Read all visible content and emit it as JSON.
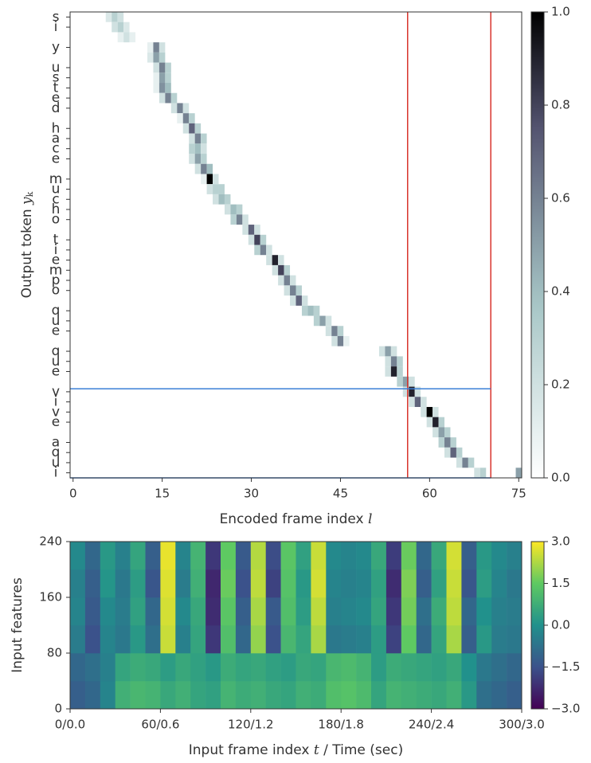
{
  "chart_data": [
    {
      "type": "heatmap",
      "ylabel": [
        "Output token ",
        "y",
        "k"
      ],
      "xlabel": [
        "Encoded frame index ",
        "l"
      ],
      "categories": [
        "s",
        "i",
        null,
        "y",
        null,
        "u",
        "s",
        "t",
        "e",
        "d",
        null,
        "h",
        "a",
        "c",
        "e",
        null,
        "m",
        "u",
        "c",
        "h",
        "o",
        null,
        "t",
        "i",
        "e",
        "m",
        "p",
        "o",
        null,
        "q",
        "u",
        "e",
        null,
        "q",
        "u",
        "e",
        null,
        "v",
        "i",
        "v",
        "e",
        null,
        "a",
        "q",
        "u",
        "i"
      ],
      "xlim": [
        -0.5,
        75.5
      ],
      "xticks": [
        0,
        15,
        30,
        45,
        60,
        75
      ],
      "colormap": "bone_r",
      "clim": [
        0,
        1
      ],
      "cticks": [
        {
          "value": 0,
          "label": "0.0"
        },
        0.2,
        0.4,
        0.6,
        0.8,
        {
          "value": 1,
          "label": "1.0"
        }
      ],
      "vlines": [
        56.3,
        70.3
      ],
      "vline_color": "#d8342c",
      "hlines": [
        37.2,
        46
      ],
      "hline_color": "#3b7fd6",
      "series": [
        {
          "x": [
            6,
            7,
            8
          ],
          "values": [
            0.15,
            0.3,
            0.2
          ]
        },
        {
          "x": [
            7,
            8,
            9
          ],
          "values": [
            0.2,
            0.3,
            0.15
          ]
        },
        {
          "x": [
            8,
            9,
            10
          ],
          "values": [
            0.1,
            0.2,
            0.1
          ]
        },
        {
          "x": [
            13,
            14,
            15
          ],
          "values": [
            0.1,
            0.6,
            0.2
          ]
        },
        {
          "x": [
            13,
            14,
            15
          ],
          "values": [
            0.15,
            0.5,
            0.3
          ]
        },
        {
          "x": [
            14,
            15,
            16
          ],
          "values": [
            0.2,
            0.6,
            0.3
          ]
        },
        {
          "x": [
            14,
            15,
            16
          ],
          "values": [
            0.1,
            0.5,
            0.3
          ]
        },
        {
          "x": [
            14,
            15,
            16
          ],
          "values": [
            0.1,
            0.55,
            0.4
          ]
        },
        {
          "x": [
            15,
            16,
            17
          ],
          "values": [
            0.2,
            0.6,
            0.3
          ]
        },
        {
          "x": [
            17,
            18,
            19
          ],
          "values": [
            0.2,
            0.6,
            0.2
          ]
        },
        {
          "x": [
            18,
            19,
            20
          ],
          "values": [
            0.1,
            0.6,
            0.3
          ]
        },
        {
          "x": [
            19,
            20,
            21
          ],
          "values": [
            0.2,
            0.7,
            0.3
          ]
        },
        {
          "x": [
            20,
            21,
            22
          ],
          "values": [
            0.2,
            0.6,
            0.3
          ]
        },
        {
          "x": [
            20,
            21,
            22
          ],
          "values": [
            0.3,
            0.4,
            0.2
          ]
        },
        {
          "x": [
            20,
            21,
            22
          ],
          "values": [
            0.2,
            0.5,
            0.3
          ]
        },
        {
          "x": [
            21,
            22,
            23
          ],
          "values": [
            0.2,
            0.6,
            0.4
          ]
        },
        {
          "x": [
            22,
            23,
            24
          ],
          "values": [
            0.1,
            1.0,
            0.2
          ]
        },
        {
          "x": [
            23,
            24,
            25
          ],
          "values": [
            0.2,
            0.3,
            0.3
          ]
        },
        {
          "x": [
            24,
            25,
            26
          ],
          "values": [
            0.2,
            0.4,
            0.3
          ]
        },
        {
          "x": [
            26,
            27,
            28
          ],
          "values": [
            0.2,
            0.4,
            0.3
          ]
        },
        {
          "x": [
            27,
            28,
            29
          ],
          "values": [
            0.3,
            0.6,
            0.2
          ]
        },
        {
          "x": [
            29,
            30,
            31
          ],
          "values": [
            0.2,
            0.7,
            0.2
          ]
        },
        {
          "x": [
            30,
            31,
            32
          ],
          "values": [
            0.2,
            0.8,
            0.3
          ]
        },
        {
          "x": [
            31,
            32,
            33
          ],
          "values": [
            0.3,
            0.6,
            0.2
          ]
        },
        {
          "x": [
            33,
            34,
            35
          ],
          "values": [
            0.2,
            0.9,
            0.2
          ]
        },
        {
          "x": [
            34,
            35,
            36
          ],
          "values": [
            0.2,
            0.8,
            0.3
          ]
        },
        {
          "x": [
            35,
            36,
            37
          ],
          "values": [
            0.2,
            0.6,
            0.2
          ]
        },
        {
          "x": [
            36,
            37,
            38
          ],
          "values": [
            0.2,
            0.6,
            0.3
          ]
        },
        {
          "x": [
            37,
            38,
            39
          ],
          "values": [
            0.2,
            0.7,
            0.2
          ]
        },
        {
          "x": [
            39,
            40,
            41
          ],
          "values": [
            0.3,
            0.4,
            0.3
          ]
        },
        {
          "x": [
            41,
            42,
            43
          ],
          "values": [
            0.3,
            0.5,
            0.2
          ]
        },
        {
          "x": [
            43,
            44,
            45
          ],
          "values": [
            0.2,
            0.6,
            0.3
          ]
        },
        {
          "x": [
            44,
            45,
            46
          ],
          "values": [
            0.2,
            0.6,
            0.1
          ]
        },
        {
          "x": [
            52,
            53,
            54
          ],
          "values": [
            0.2,
            0.5,
            0.2
          ]
        },
        {
          "x": [
            53,
            54,
            55
          ],
          "values": [
            0.2,
            0.6,
            0.3
          ]
        },
        {
          "x": [
            53,
            54,
            55
          ],
          "values": [
            0.2,
            0.9,
            0.3
          ]
        },
        {
          "x": [
            55,
            56,
            57
          ],
          "values": [
            0.3,
            0.5,
            0.2
          ]
        },
        {
          "x": [
            56,
            57,
            58
          ],
          "values": [
            0.2,
            0.9,
            0.2
          ]
        },
        {
          "x": [
            57,
            58,
            59
          ],
          "values": [
            0.2,
            0.7,
            0.2
          ]
        },
        {
          "x": [
            59,
            60,
            61
          ],
          "values": [
            0.2,
            1.0,
            0.2
          ]
        },
        {
          "x": [
            60,
            61,
            62
          ],
          "values": [
            0.2,
            0.9,
            0.3
          ]
        },
        {
          "x": [
            61,
            62,
            63
          ],
          "values": [
            0.2,
            0.5,
            0.3
          ]
        },
        {
          "x": [
            62,
            63,
            64
          ],
          "values": [
            0.3,
            0.6,
            0.3
          ]
        },
        {
          "x": [
            63,
            64,
            65
          ],
          "values": [
            0.2,
            0.7,
            0.3
          ]
        },
        {
          "x": [
            65,
            66,
            67
          ],
          "values": [
            0.2,
            0.6,
            0.3
          ]
        },
        {
          "x": [
            68,
            69,
            75
          ],
          "values": [
            0.2,
            0.3,
            0.5
          ]
        }
      ]
    },
    {
      "type": "heatmap",
      "ylabel": [
        "Input features"
      ],
      "xlabel": [
        "Input frame index ",
        "t",
        " / Time (sec)"
      ],
      "xlim": [
        0,
        300
      ],
      "xticks": [
        {
          "value": 0,
          "label": "0/0.0"
        },
        {
          "value": 60,
          "label": "60/0.6"
        },
        {
          "value": 120,
          "label": "120/1.2"
        },
        {
          "value": 180,
          "label": "180/1.8"
        },
        {
          "value": 240,
          "label": "240/2.4"
        },
        {
          "value": 300,
          "label": "300/3.0"
        }
      ],
      "ylim": [
        0,
        240
      ],
      "yticks": [
        0,
        80,
        160,
        240
      ],
      "colormap": "viridis",
      "clim": [
        -3,
        3
      ],
      "cticks": [
        {
          "value": 3,
          "label": "3.0"
        },
        1.5,
        {
          "value": 0,
          "label": "0.0"
        },
        {
          "value": -1.5,
          "label": "−1.5"
        },
        {
          "value": -3,
          "label": "−3.0"
        }
      ],
      "x_edges": [
        0,
        10,
        20,
        30,
        40,
        50,
        60,
        70,
        80,
        90,
        100,
        110,
        120,
        130,
        140,
        150,
        160,
        170,
        180,
        190,
        200,
        210,
        220,
        230,
        240,
        250,
        260,
        270,
        280,
        290,
        300
      ],
      "y_edges": [
        0,
        40,
        80,
        120,
        160,
        200,
        240
      ],
      "values": [
        [
          -1.2,
          -1.0,
          -0.3,
          0.8,
          1.0,
          0.9,
          0.6,
          0.8,
          0.5,
          0.4,
          0.9,
          0.7,
          0.8,
          0.6,
          0.5,
          0.8,
          0.7,
          1.2,
          1.3,
          1.1,
          0.5,
          0.9,
          0.8,
          0.7,
          0.6,
          0.8,
          0.2,
          -0.8,
          -1.0,
          -1.2
        ],
        [
          -1.0,
          -0.8,
          -0.4,
          0.5,
          0.7,
          0.6,
          0.3,
          0.6,
          0.4,
          0.2,
          0.7,
          0.5,
          0.6,
          0.4,
          0.3,
          0.6,
          0.5,
          1.0,
          1.1,
          0.9,
          0.3,
          0.7,
          0.6,
          0.5,
          0.4,
          0.6,
          0.0,
          -0.6,
          -0.8,
          -1.0
        ],
        [
          -0.5,
          -1.5,
          -0.3,
          -0.6,
          0.2,
          -0.8,
          2.5,
          -0.4,
          0.5,
          -2.0,
          1.2,
          -1.0,
          2.0,
          -1.5,
          1.0,
          0.5,
          2.2,
          -0.6,
          -0.5,
          -0.4,
          0.3,
          -1.8,
          1.5,
          -1.0,
          0.5,
          2.2,
          -1.2,
          0.2,
          -0.5,
          -0.6
        ],
        [
          -0.3,
          -1.3,
          -0.2,
          -0.5,
          0.4,
          -1.0,
          2.6,
          -0.2,
          0.6,
          -2.2,
          1.4,
          -1.2,
          2.2,
          -1.3,
          1.2,
          0.3,
          2.4,
          -0.4,
          -0.3,
          -0.2,
          0.5,
          -2.0,
          1.7,
          -0.8,
          0.7,
          2.4,
          -1.0,
          0.0,
          -0.4,
          -0.5
        ],
        [
          -0.4,
          -1.2,
          0.1,
          -0.6,
          0.3,
          -1.4,
          2.7,
          -0.5,
          0.8,
          -2.3,
          1.6,
          -1.5,
          2.4,
          -1.8,
          1.3,
          0.2,
          2.6,
          -0.3,
          -0.4,
          -0.3,
          0.4,
          -2.2,
          1.8,
          -1.2,
          0.4,
          2.5,
          -1.4,
          0.3,
          -0.3,
          -0.6
        ],
        [
          -0.2,
          -1.0,
          0.2,
          -0.4,
          0.5,
          -1.2,
          2.8,
          -0.3,
          0.9,
          -2.0,
          1.5,
          -1.3,
          2.3,
          -1.6,
          1.4,
          0.4,
          2.5,
          -0.2,
          -0.3,
          -0.2,
          0.6,
          -1.9,
          1.6,
          -1.0,
          0.6,
          2.6,
          -1.2,
          0.2,
          -0.2,
          -0.4
        ]
      ]
    }
  ]
}
